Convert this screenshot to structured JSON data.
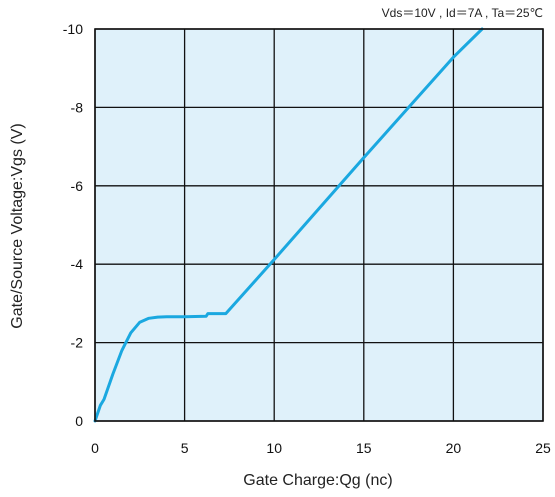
{
  "chart_data": {
    "type": "line",
    "conditions": "Vds＝10V , Id＝7A , Ta＝25℃",
    "xlabel": "Gate Charge:Qg  (nc)",
    "ylabel": "Gate/Source Voltage:Vgs  (V)",
    "xlim": [
      0,
      25
    ],
    "ylim": [
      0,
      -10
    ],
    "x_ticks": [
      "0",
      "5",
      "10",
      "15",
      "20",
      "25"
    ],
    "y_ticks": [
      "0",
      "-2",
      "-4",
      "-6",
      "-8",
      "-10"
    ],
    "grid": true,
    "colors": {
      "plot_bg": "#dff1fa",
      "line": "#1aa8e0",
      "grid": "#111111"
    },
    "series": [
      {
        "x": [
          0,
          0.3,
          0.5,
          1.0,
          1.5,
          2.0,
          2.5,
          3.0,
          3.5,
          4.0,
          5.0,
          6.2,
          6.3,
          7.3,
          10.0,
          15.0,
          20.0,
          21.6
        ],
        "y": [
          0,
          -0.4,
          -0.55,
          -1.2,
          -1.8,
          -2.25,
          -2.52,
          -2.62,
          -2.65,
          -2.66,
          -2.66,
          -2.67,
          -2.74,
          -2.74,
          -4.12,
          -6.72,
          -9.28,
          -10.0
        ]
      }
    ]
  }
}
